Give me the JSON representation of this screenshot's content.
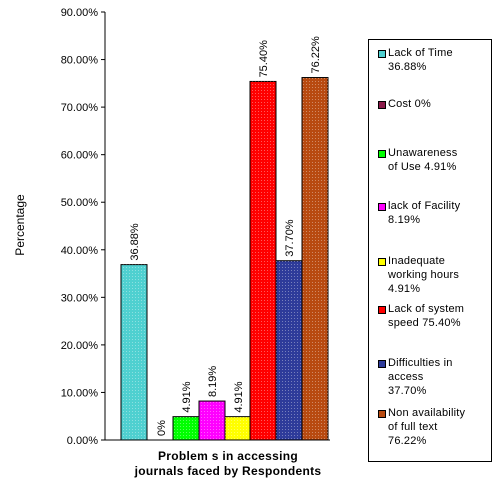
{
  "chart_data": {
    "type": "bar",
    "title": "",
    "xlabel": "Problem s in accessing journals faced by Respondents",
    "ylabel": "Percentage",
    "ylim": [
      0,
      90
    ],
    "yticks": [
      "0.00%",
      "10.00%",
      "20.00%",
      "30.00%",
      "40.00%",
      "50.00%",
      "60.00%",
      "70.00%",
      "80.00%",
      "90.00%"
    ],
    "grid": false,
    "legend_position": "right",
    "series": [
      {
        "name": "Lack of Time 36.88%",
        "value": 36.88,
        "label": "36.88%",
        "color": "#4fd0d0"
      },
      {
        "name": "Cost 0%",
        "value": 0,
        "label": "0%",
        "color": "#8b1a4a"
      },
      {
        "name": "Unawareness of Use 4.91%",
        "value": 4.91,
        "label": "4.91%",
        "color": "#00ff00"
      },
      {
        "name": "lack of Facility 8.19%",
        "value": 8.19,
        "label": "8.19%",
        "color": "#ff00ff"
      },
      {
        "name": "Inadequate working hours 4.91%",
        "value": 4.91,
        "label": "4.91%",
        "color": "#ffff00"
      },
      {
        "name": "Lack of system speed 75.40%",
        "value": 75.4,
        "label": "75.40%",
        "color": "#ff0000"
      },
      {
        "name": "Difficulties in access 37.70%",
        "value": 37.7,
        "label": "37.70%",
        "color": "#2e3b9a"
      },
      {
        "name": "Non availability of full text 76.22%",
        "value": 76.22,
        "label": "76.22%",
        "color": "#b84a10"
      }
    ]
  },
  "legend": {
    "items": [
      {
        "lines": [
          "Lack of Time",
          "36.88%"
        ],
        "color": "#4fd0d0"
      },
      {
        "lines": [
          "Cost 0%"
        ],
        "color": "#8b1a4a"
      },
      {
        "lines": [
          "Unawareness",
          "of Use 4.91%"
        ],
        "color": "#00ff00"
      },
      {
        "lines": [
          "lack of Facility",
          "8.19%"
        ],
        "color": "#ff00ff"
      },
      {
        "lines": [
          "Inadequate",
          "working hours",
          "4.91%"
        ],
        "color": "#ffff00"
      },
      {
        "lines": [
          "Lack of system",
          "speed 75.40%"
        ],
        "color": "#ff0000"
      },
      {
        "lines": [
          "Difficulties in",
          "access",
          "37.70%"
        ],
        "color": "#2e3b9a"
      },
      {
        "lines": [
          "Non availability",
          "of full text",
          "76.22%"
        ],
        "color": "#b84a10"
      }
    ]
  }
}
